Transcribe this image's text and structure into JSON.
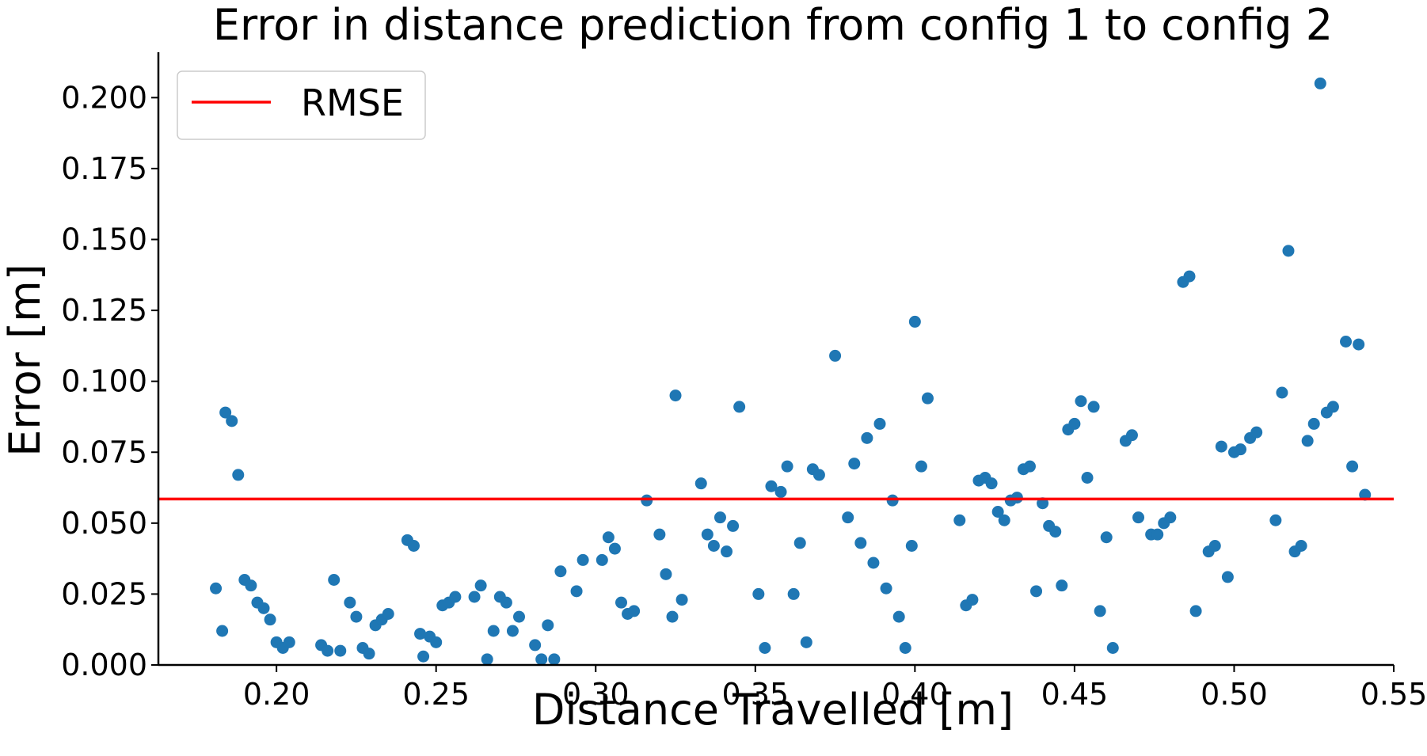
{
  "chart_data": {
    "type": "scatter",
    "title": "Error in distance prediction from config 1 to config 2",
    "xlabel": "Distance Travelled [m]",
    "ylabel": "Error [m]",
    "xlim": [
      0.163,
      0.55
    ],
    "ylim": [
      0.0,
      0.216
    ],
    "x_ticks": [
      0.2,
      0.25,
      0.3,
      0.35,
      0.4,
      0.45,
      0.5,
      0.55
    ],
    "x_tick_labels": [
      "0.20",
      "0.25",
      "0.30",
      "0.35",
      "0.40",
      "0.45",
      "0.50",
      "0.55"
    ],
    "y_ticks": [
      0.0,
      0.025,
      0.05,
      0.075,
      0.1,
      0.125,
      0.15,
      0.175,
      0.2
    ],
    "y_tick_labels": [
      "0.000",
      "0.025",
      "0.050",
      "0.075",
      "0.100",
      "0.125",
      "0.150",
      "0.175",
      "0.200"
    ],
    "grid": false,
    "legend_position": "top-left",
    "legend": [
      {
        "label": "RMSE",
        "color": "#ff0000",
        "kind": "line"
      }
    ],
    "rmse": 0.0585,
    "point_color": "#1f77b4",
    "line_color": "#ff0000",
    "points": [
      [
        0.181,
        0.027
      ],
      [
        0.183,
        0.012
      ],
      [
        0.184,
        0.089
      ],
      [
        0.186,
        0.086
      ],
      [
        0.188,
        0.067
      ],
      [
        0.19,
        0.03
      ],
      [
        0.192,
        0.028
      ],
      [
        0.194,
        0.022
      ],
      [
        0.196,
        0.02
      ],
      [
        0.198,
        0.016
      ],
      [
        0.2,
        0.008
      ],
      [
        0.202,
        0.006
      ],
      [
        0.204,
        0.008
      ],
      [
        0.214,
        0.007
      ],
      [
        0.216,
        0.005
      ],
      [
        0.218,
        0.03
      ],
      [
        0.22,
        0.005
      ],
      [
        0.223,
        0.022
      ],
      [
        0.225,
        0.017
      ],
      [
        0.227,
        0.006
      ],
      [
        0.229,
        0.004
      ],
      [
        0.231,
        0.014
      ],
      [
        0.233,
        0.016
      ],
      [
        0.235,
        0.018
      ],
      [
        0.241,
        0.044
      ],
      [
        0.243,
        0.042
      ],
      [
        0.245,
        0.011
      ],
      [
        0.246,
        0.003
      ],
      [
        0.248,
        0.01
      ],
      [
        0.25,
        0.008
      ],
      [
        0.252,
        0.021
      ],
      [
        0.254,
        0.022
      ],
      [
        0.256,
        0.024
      ],
      [
        0.262,
        0.024
      ],
      [
        0.264,
        0.028
      ],
      [
        0.266,
        0.002
      ],
      [
        0.268,
        0.012
      ],
      [
        0.27,
        0.024
      ],
      [
        0.272,
        0.022
      ],
      [
        0.274,
        0.012
      ],
      [
        0.276,
        0.017
      ],
      [
        0.281,
        0.007
      ],
      [
        0.283,
        0.002
      ],
      [
        0.285,
        0.014
      ],
      [
        0.287,
        0.002
      ],
      [
        0.289,
        0.033
      ],
      [
        0.294,
        0.026
      ],
      [
        0.296,
        0.037
      ],
      [
        0.302,
        0.037
      ],
      [
        0.304,
        0.045
      ],
      [
        0.306,
        0.041
      ],
      [
        0.308,
        0.022
      ],
      [
        0.31,
        0.018
      ],
      [
        0.312,
        0.019
      ],
      [
        0.316,
        0.058
      ],
      [
        0.32,
        0.046
      ],
      [
        0.322,
        0.032
      ],
      [
        0.324,
        0.017
      ],
      [
        0.325,
        0.095
      ],
      [
        0.327,
        0.023
      ],
      [
        0.333,
        0.064
      ],
      [
        0.335,
        0.046
      ],
      [
        0.337,
        0.042
      ],
      [
        0.339,
        0.052
      ],
      [
        0.341,
        0.04
      ],
      [
        0.343,
        0.049
      ],
      [
        0.345,
        0.091
      ],
      [
        0.351,
        0.025
      ],
      [
        0.353,
        0.006
      ],
      [
        0.355,
        0.063
      ],
      [
        0.358,
        0.061
      ],
      [
        0.36,
        0.07
      ],
      [
        0.362,
        0.025
      ],
      [
        0.364,
        0.043
      ],
      [
        0.366,
        0.008
      ],
      [
        0.368,
        0.069
      ],
      [
        0.37,
        0.067
      ],
      [
        0.375,
        0.109
      ],
      [
        0.379,
        0.052
      ],
      [
        0.381,
        0.071
      ],
      [
        0.383,
        0.043
      ],
      [
        0.385,
        0.08
      ],
      [
        0.387,
        0.036
      ],
      [
        0.389,
        0.085
      ],
      [
        0.391,
        0.027
      ],
      [
        0.393,
        0.058
      ],
      [
        0.395,
        0.017
      ],
      [
        0.397,
        0.006
      ],
      [
        0.399,
        0.042
      ],
      [
        0.4,
        0.121
      ],
      [
        0.402,
        0.07
      ],
      [
        0.404,
        0.094
      ],
      [
        0.414,
        0.051
      ],
      [
        0.416,
        0.021
      ],
      [
        0.418,
        0.023
      ],
      [
        0.42,
        0.065
      ],
      [
        0.422,
        0.066
      ],
      [
        0.424,
        0.064
      ],
      [
        0.426,
        0.054
      ],
      [
        0.428,
        0.051
      ],
      [
        0.43,
        0.058
      ],
      [
        0.432,
        0.059
      ],
      [
        0.434,
        0.069
      ],
      [
        0.436,
        0.07
      ],
      [
        0.438,
        0.026
      ],
      [
        0.44,
        0.057
      ],
      [
        0.442,
        0.049
      ],
      [
        0.444,
        0.047
      ],
      [
        0.446,
        0.028
      ],
      [
        0.448,
        0.083
      ],
      [
        0.45,
        0.085
      ],
      [
        0.452,
        0.093
      ],
      [
        0.454,
        0.066
      ],
      [
        0.456,
        0.091
      ],
      [
        0.458,
        0.019
      ],
      [
        0.46,
        0.045
      ],
      [
        0.462,
        0.006
      ],
      [
        0.466,
        0.079
      ],
      [
        0.468,
        0.081
      ],
      [
        0.47,
        0.052
      ],
      [
        0.474,
        0.046
      ],
      [
        0.476,
        0.046
      ],
      [
        0.478,
        0.05
      ],
      [
        0.48,
        0.052
      ],
      [
        0.484,
        0.135
      ],
      [
        0.486,
        0.137
      ],
      [
        0.488,
        0.019
      ],
      [
        0.492,
        0.04
      ],
      [
        0.494,
        0.042
      ],
      [
        0.496,
        0.077
      ],
      [
        0.498,
        0.031
      ],
      [
        0.5,
        0.075
      ],
      [
        0.502,
        0.076
      ],
      [
        0.505,
        0.08
      ],
      [
        0.507,
        0.082
      ],
      [
        0.513,
        0.051
      ],
      [
        0.515,
        0.096
      ],
      [
        0.517,
        0.146
      ],
      [
        0.519,
        0.04
      ],
      [
        0.521,
        0.042
      ],
      [
        0.523,
        0.079
      ],
      [
        0.525,
        0.085
      ],
      [
        0.527,
        0.205
      ],
      [
        0.529,
        0.089
      ],
      [
        0.531,
        0.091
      ],
      [
        0.535,
        0.114
      ],
      [
        0.537,
        0.07
      ],
      [
        0.539,
        0.113
      ],
      [
        0.541,
        0.06
      ]
    ]
  }
}
